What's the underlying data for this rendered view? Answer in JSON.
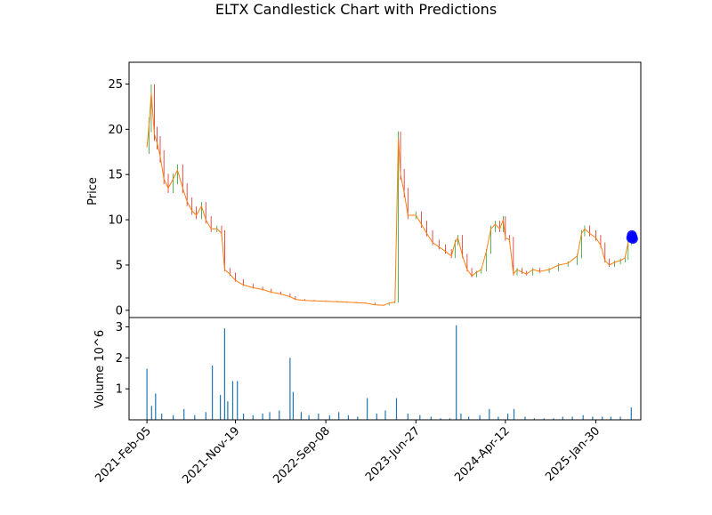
{
  "chart_data": [
    {
      "type": "candlestick",
      "title": "ELTX Candlestick Chart with Predictions",
      "ylabel": "Price",
      "xlabel": "",
      "ylim": [
        -0.8,
        27.4
      ],
      "yticks": [
        0,
        5,
        10,
        15,
        20,
        25
      ],
      "x_tick_labels": [
        "2021-Feb-05",
        "2021-Nov-19",
        "2022-Sep-08",
        "2023-Jun-27",
        "2024-Apr-12",
        "2025-Jan-30"
      ],
      "x_tick_dates": [
        "2021-02-05",
        "2021-11-19",
        "2022-09-08",
        "2023-06-27",
        "2024-04-12",
        "2025-01-30"
      ],
      "xlim_dates": [
        "2020-12-09",
        "2025-06-25"
      ],
      "grid": false,
      "colors": {
        "up": "#2ca02c",
        "down": "#d62728",
        "close_line": "#ff7f0e",
        "prediction": "#0000ff"
      },
      "close_series": [
        [
          "2021-02-05",
          18.0
        ],
        [
          "2021-02-12",
          20.5
        ],
        [
          "2021-02-19",
          24.0
        ],
        [
          "2021-03-01",
          19.5
        ],
        [
          "2021-03-10",
          18.5
        ],
        [
          "2021-03-20",
          17.0
        ],
        [
          "2021-04-01",
          14.5
        ],
        [
          "2021-04-15",
          13.5
        ],
        [
          "2021-05-01",
          14.5
        ],
        [
          "2021-05-15",
          15.5
        ],
        [
          "2021-06-01",
          13.5
        ],
        [
          "2021-06-15",
          12.0
        ],
        [
          "2021-07-01",
          11.0
        ],
        [
          "2021-07-15",
          10.5
        ],
        [
          "2021-08-01",
          11.5
        ],
        [
          "2021-08-15",
          10.0
        ],
        [
          "2021-09-01",
          9.0
        ],
        [
          "2021-09-20",
          9.0
        ],
        [
          "2021-10-05",
          8.5
        ],
        [
          "2021-10-15",
          4.5
        ],
        [
          "2021-11-01",
          4.0
        ],
        [
          "2021-11-19",
          3.3
        ],
        [
          "2021-12-15",
          2.8
        ],
        [
          "2022-01-15",
          2.5
        ],
        [
          "2022-02-15",
          2.3
        ],
        [
          "2022-03-15",
          2.0
        ],
        [
          "2022-04-15",
          1.8
        ],
        [
          "2022-05-15",
          1.5
        ],
        [
          "2022-06-01",
          1.2
        ],
        [
          "2022-07-01",
          1.1
        ],
        [
          "2022-08-01",
          1.05
        ],
        [
          "2022-09-08",
          1.0
        ],
        [
          "2022-10-15",
          0.95
        ],
        [
          "2022-11-15",
          0.9
        ],
        [
          "2022-12-15",
          0.85
        ],
        [
          "2023-01-15",
          0.8
        ],
        [
          "2023-02-15",
          0.6
        ],
        [
          "2023-03-15",
          0.55
        ],
        [
          "2023-04-01",
          0.8
        ],
        [
          "2023-04-20",
          0.9
        ],
        [
          "2023-05-01",
          19.0
        ],
        [
          "2023-05-08",
          15.0
        ],
        [
          "2023-05-20",
          13.0
        ],
        [
          "2023-06-01",
          10.5
        ],
        [
          "2023-06-27",
          10.5
        ],
        [
          "2023-07-15",
          9.5
        ],
        [
          "2023-08-01",
          8.5
        ],
        [
          "2023-08-20",
          7.5
        ],
        [
          "2023-09-10",
          7.0
        ],
        [
          "2023-10-01",
          6.5
        ],
        [
          "2023-10-20",
          6.0
        ],
        [
          "2023-11-01",
          7.5
        ],
        [
          "2023-11-10",
          8.0
        ],
        [
          "2023-11-25",
          6.0
        ],
        [
          "2023-12-10",
          4.5
        ],
        [
          "2023-12-25",
          3.8
        ],
        [
          "2024-01-10",
          4.2
        ],
        [
          "2024-01-25",
          4.5
        ],
        [
          "2024-02-10",
          6.5
        ],
        [
          "2024-02-25",
          9.0
        ],
        [
          "2024-03-10",
          9.5
        ],
        [
          "2024-03-25",
          9.0
        ],
        [
          "2024-04-05",
          10.0
        ],
        [
          "2024-04-12",
          8.0
        ],
        [
          "2024-04-25",
          7.8
        ],
        [
          "2024-05-08",
          4.0
        ],
        [
          "2024-05-20",
          4.5
        ],
        [
          "2024-06-05",
          4.2
        ],
        [
          "2024-06-20",
          4.0
        ],
        [
          "2024-07-10",
          4.5
        ],
        [
          "2024-08-01",
          4.3
        ],
        [
          "2024-09-01",
          4.5
        ],
        [
          "2024-10-01",
          5.0
        ],
        [
          "2024-11-01",
          5.2
        ],
        [
          "2024-12-01",
          6.0
        ],
        [
          "2024-12-15",
          8.5
        ],
        [
          "2024-12-25",
          9.0
        ],
        [
          "2025-01-10",
          8.5
        ],
        [
          "2025-01-30",
          8.0
        ],
        [
          "2025-02-15",
          7.2
        ],
        [
          "2025-03-01",
          5.5
        ],
        [
          "2025-03-15",
          5.0
        ],
        [
          "2025-04-01",
          5.3
        ],
        [
          "2025-04-20",
          5.5
        ],
        [
          "2025-05-05",
          5.8
        ],
        [
          "2025-05-15",
          7.5
        ],
        [
          "2025-05-25",
          8.0
        ]
      ],
      "predictions": [
        [
          "2025-05-25",
          8.0
        ],
        [
          "2025-05-27",
          8.3
        ],
        [
          "2025-05-29",
          8.1
        ],
        [
          "2025-05-31",
          7.9
        ]
      ]
    },
    {
      "type": "bar",
      "ylabel": "Volume",
      "y_scale_label": "10^6",
      "ylim": [
        0,
        3.3
      ],
      "yticks": [
        1,
        2,
        3
      ],
      "grid": false,
      "color": "#1f77b4",
      "series": [
        [
          "2021-02-05",
          1.65
        ],
        [
          "2021-02-20",
          0.45
        ],
        [
          "2021-03-05",
          0.85
        ],
        [
          "2021-03-25",
          0.2
        ],
        [
          "2021-05-01",
          0.15
        ],
        [
          "2021-06-05",
          0.35
        ],
        [
          "2021-07-10",
          0.15
        ],
        [
          "2021-08-15",
          0.25
        ],
        [
          "2021-09-05",
          1.75
        ],
        [
          "2021-10-01",
          0.8
        ],
        [
          "2021-10-15",
          2.95
        ],
        [
          "2021-10-25",
          0.6
        ],
        [
          "2021-11-10",
          1.25
        ],
        [
          "2021-11-25",
          1.25
        ],
        [
          "2021-12-15",
          0.2
        ],
        [
          "2022-01-15",
          0.15
        ],
        [
          "2022-02-15",
          0.2
        ],
        [
          "2022-03-10",
          0.25
        ],
        [
          "2022-04-10",
          0.3
        ],
        [
          "2022-05-15",
          2.0
        ],
        [
          "2022-05-25",
          0.9
        ],
        [
          "2022-06-20",
          0.25
        ],
        [
          "2022-07-15",
          0.15
        ],
        [
          "2022-08-15",
          0.2
        ],
        [
          "2022-09-20",
          0.15
        ],
        [
          "2022-10-20",
          0.25
        ],
        [
          "2022-11-20",
          0.15
        ],
        [
          "2022-12-20",
          0.1
        ],
        [
          "2023-01-20",
          0.7
        ],
        [
          "2023-02-20",
          0.2
        ],
        [
          "2023-03-20",
          0.3
        ],
        [
          "2023-04-25",
          0.7
        ],
        [
          "2023-06-01",
          0.2
        ],
        [
          "2023-07-10",
          0.15
        ],
        [
          "2023-08-15",
          0.1
        ],
        [
          "2023-09-15",
          0.05
        ],
        [
          "2023-10-15",
          0.05
        ],
        [
          "2023-11-05",
          3.05
        ],
        [
          "2023-11-20",
          0.2
        ],
        [
          "2023-12-15",
          0.1
        ],
        [
          "2024-01-20",
          0.15
        ],
        [
          "2024-02-20",
          0.35
        ],
        [
          "2024-03-20",
          0.1
        ],
        [
          "2024-04-20",
          0.2
        ],
        [
          "2024-05-10",
          0.35
        ],
        [
          "2024-06-15",
          0.1
        ],
        [
          "2024-07-15",
          0.05
        ],
        [
          "2024-08-15",
          0.05
        ],
        [
          "2024-09-15",
          0.05
        ],
        [
          "2024-10-15",
          0.1
        ],
        [
          "2024-11-15",
          0.1
        ],
        [
          "2024-12-20",
          0.15
        ],
        [
          "2025-01-20",
          0.1
        ],
        [
          "2025-02-20",
          0.1
        ],
        [
          "2025-03-20",
          0.1
        ],
        [
          "2025-04-20",
          0.1
        ],
        [
          "2025-05-25",
          0.4
        ]
      ]
    }
  ]
}
